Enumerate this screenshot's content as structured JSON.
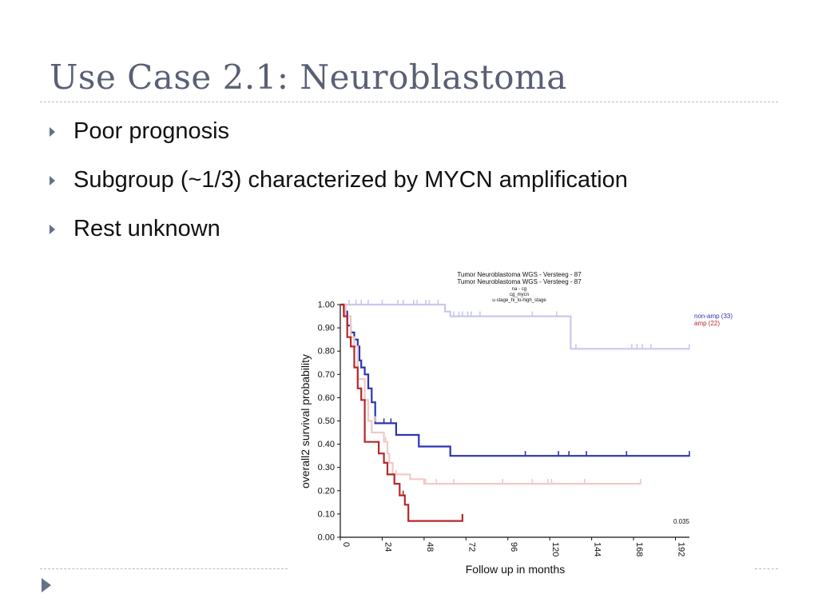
{
  "slide": {
    "title": "Use Case 2.1: Neuroblastoma",
    "bullets": [
      "Poor prognosis",
      "Subgroup (~1/3) characterized by MYCN amplification",
      "Rest unknown"
    ]
  },
  "chart_data": {
    "type": "line",
    "header_lines": [
      "Tumor Neuroblastoma WGS - Versteeg - 87",
      "Tumor Neuroblastoma WGS - Versteeg - 87",
      "na - cg",
      "cg_mycn",
      "u-stage_hi_lo-high_stage"
    ],
    "xlabel": "Follow up in months",
    "ylabel": "overall2 survival probability",
    "xlim": [
      0,
      200
    ],
    "ylim": [
      0,
      1
    ],
    "x_ticks": [
      "0",
      "24",
      "48",
      "72",
      "96",
      "120",
      "144",
      "168",
      "192"
    ],
    "y_ticks": [
      "0.00",
      "0.10",
      "0.20",
      "0.30",
      "0.40",
      "0.50",
      "0.60",
      "0.70",
      "0.80",
      "0.90",
      "1.00"
    ],
    "p_value": "0.035",
    "legend_position": "top-right",
    "series": [
      {
        "name": "",
        "color": "#c8c8ee",
        "points": [
          [
            0,
            1.0
          ],
          [
            60,
            1.0
          ],
          [
            60,
            0.97
          ],
          [
            63,
            0.97
          ],
          [
            63,
            0.95
          ],
          [
            132,
            0.95
          ],
          [
            132,
            0.81
          ],
          [
            200,
            0.81
          ]
        ],
        "censor": [
          [
            5,
            1.0
          ],
          [
            9,
            1.0
          ],
          [
            12,
            1.0
          ],
          [
            16,
            1.0
          ],
          [
            24,
            1.0
          ],
          [
            33,
            1.0
          ],
          [
            36,
            1.0
          ],
          [
            42,
            1.0
          ],
          [
            44,
            1.0
          ],
          [
            49,
            1.0
          ],
          [
            51,
            1.0
          ],
          [
            56,
            1.0
          ],
          [
            63,
            0.95
          ],
          [
            65,
            0.95
          ],
          [
            68,
            0.95
          ],
          [
            70,
            0.95
          ],
          [
            73,
            0.95
          ],
          [
            75,
            0.95
          ],
          [
            80,
            0.95
          ],
          [
            110,
            0.95
          ],
          [
            124,
            0.95
          ],
          [
            135,
            0.81
          ],
          [
            167,
            0.81
          ],
          [
            170,
            0.81
          ],
          [
            173,
            0.81
          ],
          [
            178,
            0.81
          ],
          [
            200,
            0.81
          ]
        ]
      },
      {
        "name": "non-amp (33)",
        "color": "#2b35b0",
        "points": [
          [
            0,
            1.0
          ],
          [
            2,
            1.0
          ],
          [
            2,
            0.97
          ],
          [
            4,
            0.97
          ],
          [
            4,
            0.91
          ],
          [
            6,
            0.91
          ],
          [
            6,
            0.88
          ],
          [
            8,
            0.88
          ],
          [
            8,
            0.85
          ],
          [
            10,
            0.85
          ],
          [
            10,
            0.82
          ],
          [
            11,
            0.82
          ],
          [
            11,
            0.76
          ],
          [
            12,
            0.76
          ],
          [
            12,
            0.73
          ],
          [
            14,
            0.73
          ],
          [
            14,
            0.7
          ],
          [
            16,
            0.7
          ],
          [
            16,
            0.64
          ],
          [
            18,
            0.64
          ],
          [
            18,
            0.58
          ],
          [
            20,
            0.58
          ],
          [
            20,
            0.52
          ],
          [
            20,
            0.49
          ],
          [
            32,
            0.49
          ],
          [
            32,
            0.44
          ],
          [
            45,
            0.44
          ],
          [
            45,
            0.39
          ],
          [
            63,
            0.39
          ],
          [
            63,
            0.35
          ],
          [
            200,
            0.35
          ]
        ],
        "censor": [
          [
            25,
            0.49
          ],
          [
            29,
            0.49
          ],
          [
            106,
            0.35
          ],
          [
            125,
            0.35
          ],
          [
            131,
            0.35
          ],
          [
            141,
            0.35
          ],
          [
            164,
            0.35
          ],
          [
            200,
            0.35
          ]
        ]
      },
      {
        "name": "",
        "color": "#f2c8c8",
        "points": [
          [
            0,
            1.0
          ],
          [
            3,
            1.0
          ],
          [
            3,
            0.95
          ],
          [
            6,
            0.95
          ],
          [
            6,
            0.86
          ],
          [
            8,
            0.86
          ],
          [
            8,
            0.82
          ],
          [
            10,
            0.82
          ],
          [
            10,
            0.68
          ],
          [
            14,
            0.68
          ],
          [
            14,
            0.59
          ],
          [
            16,
            0.59
          ],
          [
            16,
            0.5
          ],
          [
            18,
            0.5
          ],
          [
            18,
            0.45
          ],
          [
            25,
            0.45
          ],
          [
            25,
            0.41
          ],
          [
            27,
            0.41
          ],
          [
            27,
            0.36
          ],
          [
            28,
            0.36
          ],
          [
            28,
            0.32
          ],
          [
            30,
            0.32
          ],
          [
            30,
            0.27
          ],
          [
            40,
            0.27
          ],
          [
            40,
            0.25
          ],
          [
            48,
            0.25
          ],
          [
            48,
            0.23
          ],
          [
            172,
            0.23
          ]
        ],
        "censor": [
          [
            20,
            0.5
          ],
          [
            26,
            0.41
          ],
          [
            32,
            0.27
          ],
          [
            49,
            0.23
          ],
          [
            55,
            0.23
          ],
          [
            65,
            0.23
          ],
          [
            93,
            0.23
          ],
          [
            110,
            0.23
          ],
          [
            119,
            0.23
          ],
          [
            121,
            0.23
          ],
          [
            140,
            0.23
          ],
          [
            172,
            0.23
          ]
        ]
      },
      {
        "name": "amp (22)",
        "color": "#b52828",
        "points": [
          [
            0,
            1.0
          ],
          [
            2,
            1.0
          ],
          [
            2,
            0.95
          ],
          [
            4,
            0.95
          ],
          [
            4,
            0.86
          ],
          [
            6,
            0.86
          ],
          [
            6,
            0.82
          ],
          [
            8,
            0.82
          ],
          [
            8,
            0.73
          ],
          [
            10,
            0.73
          ],
          [
            10,
            0.64
          ],
          [
            12,
            0.64
          ],
          [
            12,
            0.59
          ],
          [
            14,
            0.59
          ],
          [
            14,
            0.5
          ],
          [
            14,
            0.41
          ],
          [
            22,
            0.41
          ],
          [
            22,
            0.36
          ],
          [
            25,
            0.36
          ],
          [
            25,
            0.32
          ],
          [
            27,
            0.32
          ],
          [
            27,
            0.27
          ],
          [
            31,
            0.27
          ],
          [
            31,
            0.23
          ],
          [
            34,
            0.23
          ],
          [
            34,
            0.18
          ],
          [
            37,
            0.18
          ],
          [
            37,
            0.14
          ],
          [
            39,
            0.14
          ],
          [
            39,
            0.07
          ],
          [
            70,
            0.07
          ],
          [
            70,
            0.1
          ]
        ],
        "censor": [
          [
            36,
            0.18
          ]
        ]
      }
    ]
  }
}
